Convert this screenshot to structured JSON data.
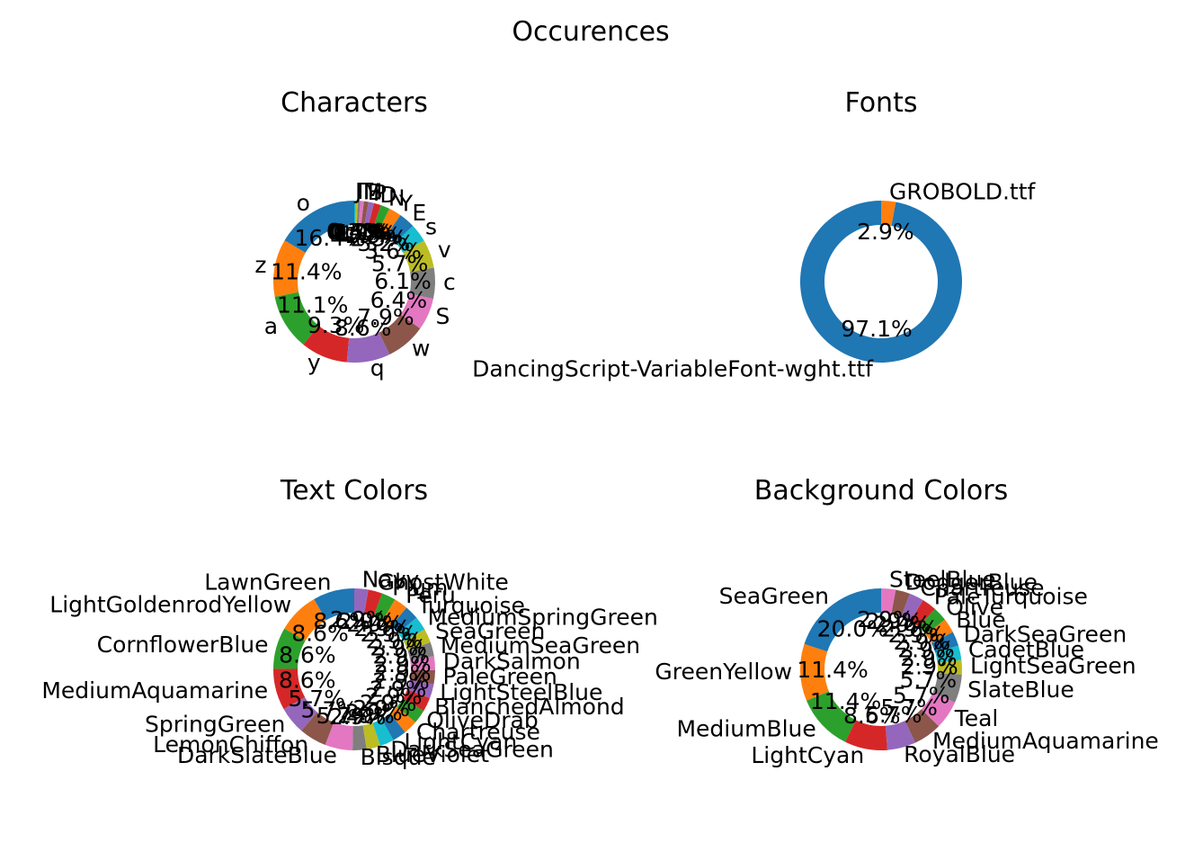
{
  "figure_title": "Occurences",
  "chart_data": [
    {
      "type": "pie",
      "donut": true,
      "title": "Characters",
      "slices": [
        {
          "label": "o",
          "value": 16.4,
          "pct": "16.4%",
          "color": "#1f77b4"
        },
        {
          "label": "z",
          "value": 11.4,
          "pct": "11.4%",
          "color": "#ff7f0e"
        },
        {
          "label": "a",
          "value": 11.1,
          "pct": "11.1%",
          "color": "#2ca02c"
        },
        {
          "label": "y",
          "value": 9.3,
          "pct": "9.3%",
          "color": "#d62728"
        },
        {
          "label": "q",
          "value": 8.6,
          "pct": "8.6%",
          "color": "#9467bd"
        },
        {
          "label": "w",
          "value": 7.9,
          "pct": "7.9%",
          "color": "#8c564b"
        },
        {
          "label": "S",
          "value": 6.4,
          "pct": "6.4%",
          "color": "#e377c2"
        },
        {
          "label": "c",
          "value": 6.1,
          "pct": "6.1%",
          "color": "#7f7f7f"
        },
        {
          "label": "v",
          "value": 5.7,
          "pct": "5.7%",
          "color": "#bcbd22"
        },
        {
          "label": "s",
          "value": 3.6,
          "pct": "3.6%",
          "color": "#17becf"
        },
        {
          "label": "E",
          "value": 3.2,
          "pct": "3.2%",
          "color": "#1f77b4"
        },
        {
          "label": "Y",
          "value": 2.5,
          "pct": "2.5%",
          "color": "#ff7f0e"
        },
        {
          "label": "N",
          "value": 1.8,
          "pct": "1.8%",
          "color": "#2ca02c"
        },
        {
          "label": "D",
          "value": 1.4,
          "pct": "1.4%",
          "color": "#d62728"
        },
        {
          "label": "P",
          "value": 1.1,
          "pct": "1.1%",
          "color": "#9467bd"
        },
        {
          "label": "B",
          "value": 0.9,
          "pct": "0.9%",
          "color": "#8c564b"
        },
        {
          "label": "M",
          "value": 0.7,
          "pct": "0.7%",
          "color": "#e377c2"
        },
        {
          "label": "T",
          "value": 0.5,
          "pct": "0.5%",
          "color": "#7f7f7f"
        },
        {
          "label": "I",
          "value": 0.4,
          "pct": "0.4%",
          "color": "#bcbd22"
        },
        {
          "label": "J",
          "value": 0.3,
          "pct": "0.3%",
          "color": "#17becf"
        }
      ]
    },
    {
      "type": "pie",
      "donut": true,
      "title": "Fonts",
      "slices": [
        {
          "label": "DancingScript-VariableFont-wght.ttf",
          "value": 97.1,
          "pct": "97.1%",
          "color": "#1f77b4"
        },
        {
          "label": "GROBOLD.ttf",
          "value": 2.9,
          "pct": "2.9%",
          "color": "#ff7f0e"
        }
      ]
    },
    {
      "type": "pie",
      "donut": true,
      "title": "Text Colors",
      "slices": [
        {
          "label": "LawnGreen",
          "value": 8.6,
          "pct": "8.6%",
          "color": "#1f77b4"
        },
        {
          "label": "LightGoldenrodYellow",
          "value": 8.6,
          "pct": "8.6%",
          "color": "#ff7f0e"
        },
        {
          "label": "CornflowerBlue",
          "value": 8.6,
          "pct": "8.6%",
          "color": "#2ca02c"
        },
        {
          "label": "MediumAquamarine",
          "value": 8.6,
          "pct": "8.6%",
          "color": "#d62728"
        },
        {
          "label": "SpringGreen",
          "value": 5.7,
          "pct": "5.7%",
          "color": "#9467bd"
        },
        {
          "label": "LemonChiffon",
          "value": 5.7,
          "pct": "5.7%",
          "color": "#8c564b"
        },
        {
          "label": "DarkSlateBlue",
          "value": 5.7,
          "pct": "5.7%",
          "color": "#e377c2"
        },
        {
          "label": "Bisque",
          "value": 2.9,
          "pct": "2.9%",
          "color": "#7f7f7f"
        },
        {
          "label": "BlueViolet",
          "value": 2.9,
          "pct": "2.9%",
          "color": "#bcbd22"
        },
        {
          "label": "DarkSeaGreen",
          "value": 2.9,
          "pct": "2.9%",
          "color": "#17becf"
        },
        {
          "label": "LightCyan",
          "value": 2.9,
          "pct": "2.9%",
          "color": "#1f77b4"
        },
        {
          "label": "Chartreuse",
          "value": 2.9,
          "pct": "2.9%",
          "color": "#ff7f0e"
        },
        {
          "label": "OliveDrab",
          "value": 2.9,
          "pct": "2.9%",
          "color": "#2ca02c"
        },
        {
          "label": "BlanchedAlmond",
          "value": 2.9,
          "pct": "2.9%",
          "color": "#d62728"
        },
        {
          "label": "LightSteelBlue",
          "value": 2.9,
          "pct": "2.9%",
          "color": "#9467bd"
        },
        {
          "label": "PaleGreen",
          "value": 2.9,
          "pct": "2.9%",
          "color": "#8c564b"
        },
        {
          "label": "DarkSalmon",
          "value": 2.9,
          "pct": "2.9%",
          "color": "#e377c2"
        },
        {
          "label": "MediumSeaGreen",
          "value": 2.9,
          "pct": "2.9%",
          "color": "#7f7f7f"
        },
        {
          "label": "SeaGreen",
          "value": 2.9,
          "pct": "2.9%",
          "color": "#bcbd22"
        },
        {
          "label": "MediumSpringGreen",
          "value": 2.9,
          "pct": "2.9%",
          "color": "#17becf"
        },
        {
          "label": "Turquoise",
          "value": 2.9,
          "pct": "2.9%",
          "color": "#1f77b4"
        },
        {
          "label": "Peru",
          "value": 2.9,
          "pct": "2.9%",
          "color": "#ff7f0e"
        },
        {
          "label": "Plum",
          "value": 2.9,
          "pct": "2.9%",
          "color": "#2ca02c"
        },
        {
          "label": "GhostWhite",
          "value": 2.9,
          "pct": "2.9%",
          "color": "#d62728"
        },
        {
          "label": "Navy",
          "value": 2.9,
          "pct": "2.9%",
          "color": "#9467bd"
        }
      ]
    },
    {
      "type": "pie",
      "donut": true,
      "title": "Background Colors",
      "slices": [
        {
          "label": "SeaGreen",
          "value": 20.0,
          "pct": "20.0%",
          "color": "#1f77b4"
        },
        {
          "label": "GreenYellow",
          "value": 11.4,
          "pct": "11.4%",
          "color": "#ff7f0e"
        },
        {
          "label": "MediumBlue",
          "value": 11.4,
          "pct": "11.4%",
          "color": "#2ca02c"
        },
        {
          "label": "LightCyan",
          "value": 8.6,
          "pct": "8.6%",
          "color": "#d62728"
        },
        {
          "label": "RoyalBlue",
          "value": 5.7,
          "pct": "5.7%",
          "color": "#9467bd"
        },
        {
          "label": "MediumAquamarine",
          "value": 5.7,
          "pct": "5.7%",
          "color": "#8c564b"
        },
        {
          "label": "Teal",
          "value": 5.7,
          "pct": "5.7%",
          "color": "#e377c2"
        },
        {
          "label": "SlateBlue",
          "value": 5.7,
          "pct": "5.7%",
          "color": "#7f7f7f"
        },
        {
          "label": "LightSeaGreen",
          "value": 2.9,
          "pct": "2.9%",
          "color": "#bcbd22"
        },
        {
          "label": "CadetBlue",
          "value": 2.9,
          "pct": "2.9%",
          "color": "#17becf"
        },
        {
          "label": "DarkSeaGreen",
          "value": 2.9,
          "pct": "2.9%",
          "color": "#1f77b4"
        },
        {
          "label": "Blue",
          "value": 2.9,
          "pct": "2.9%",
          "color": "#ff7f0e"
        },
        {
          "label": "Olive",
          "value": 2.9,
          "pct": "2.9%",
          "color": "#2ca02c"
        },
        {
          "label": "PaleTurquoise",
          "value": 2.9,
          "pct": "2.9%",
          "color": "#d62728"
        },
        {
          "label": "Chartreuse",
          "value": 2.9,
          "pct": "2.9%",
          "color": "#9467bd"
        },
        {
          "label": "DodgerBlue",
          "value": 2.9,
          "pct": "2.9%",
          "color": "#8c564b"
        },
        {
          "label": "SteelBlue",
          "value": 2.9,
          "pct": "2.9%",
          "color": "#e377c2"
        }
      ]
    }
  ]
}
